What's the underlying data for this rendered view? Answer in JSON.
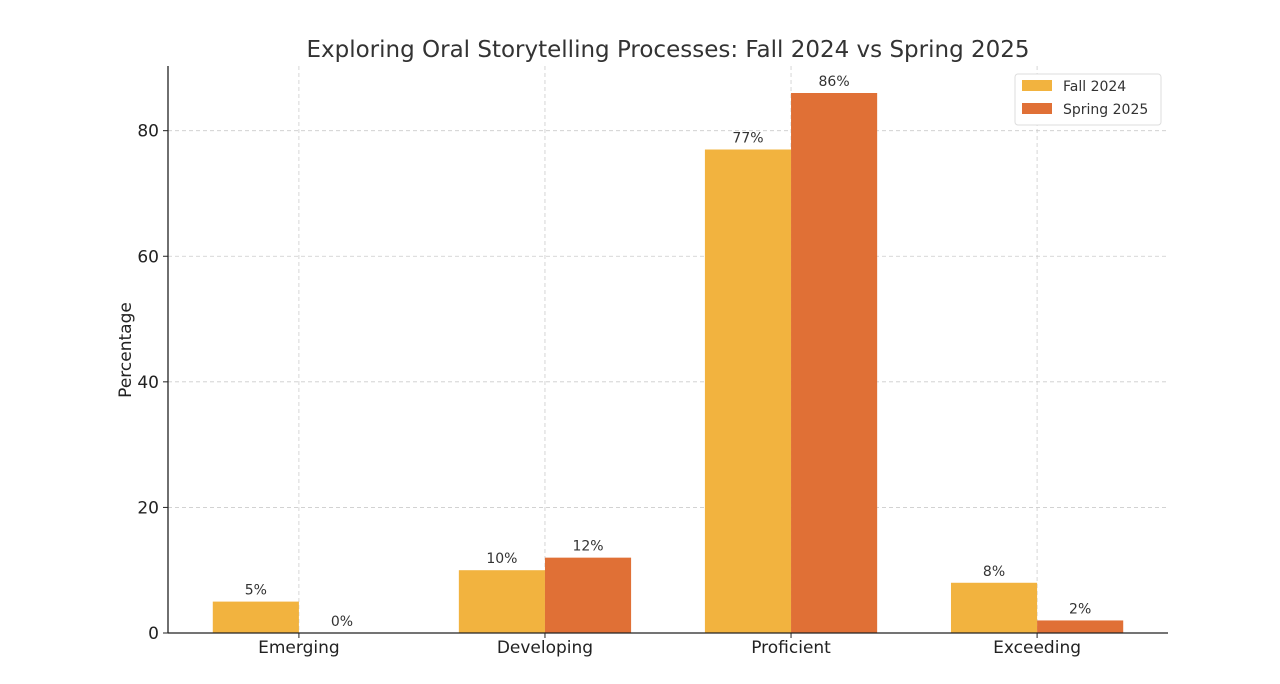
{
  "chart_data": {
    "type": "bar",
    "title": "Exploring Oral Storytelling Processes: Fall 2024 vs Spring 2025",
    "xlabel": "",
    "ylabel": "Percentage",
    "categories": [
      "Emerging",
      "Developing",
      "Proficient",
      "Exceeding"
    ],
    "series": [
      {
        "name": "Fall 2024",
        "values": [
          5,
          10,
          77,
          8
        ],
        "labels": [
          "5%",
          "10%",
          "77%",
          "8%"
        ],
        "color": "#F2B33F"
      },
      {
        "name": "Spring 2025",
        "values": [
          0,
          12,
          86,
          2
        ],
        "labels": [
          "0%",
          "12%",
          "86%",
          "2%"
        ],
        "color": "#E07036"
      }
    ],
    "ylim": [
      0,
      90.3
    ],
    "yticks": [
      0,
      20,
      40,
      60,
      80
    ],
    "grid": true,
    "legend_position": "top-right"
  }
}
